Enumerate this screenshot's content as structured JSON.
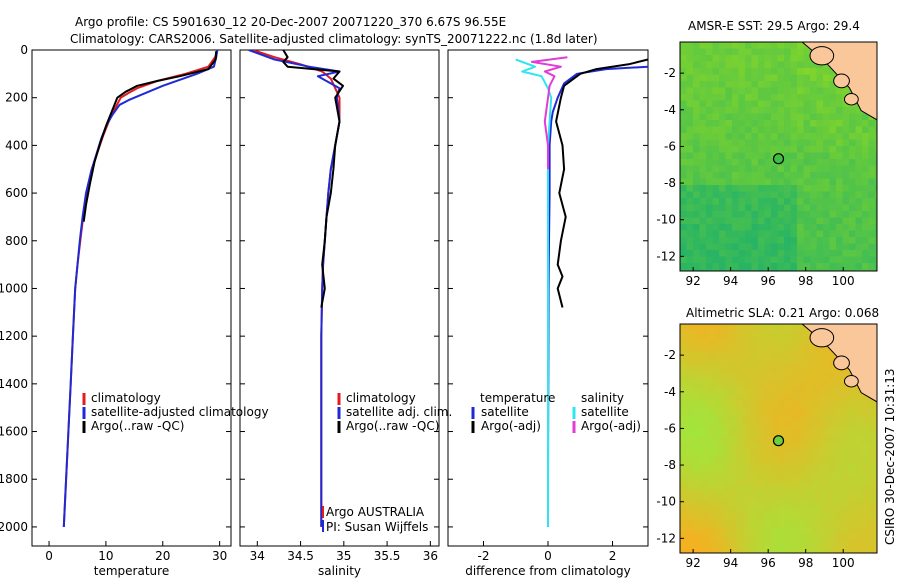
{
  "header": {
    "line1": "Argo profile: CS 5901630_12 20-Dec-2007 20071220_370 6.67S 96.55E",
    "line2": "Climatology: CARS2006. Satellite-adjusted climatology: synTS_20071222.nc (1.8d later)"
  },
  "colors": {
    "climatology": "#e41a1c",
    "satellite": "#1f2ad6",
    "argo": "#000000",
    "salinity_satellite": "#2ee6f0",
    "salinity_argo": "#e23bd8",
    "land": "#f9c79a"
  },
  "credit": "CSIRO 30-Dec-2007 10:31:13",
  "chart_data": [
    {
      "type": "line",
      "xlabel": "temperature",
      "xlim": [
        -3,
        32
      ],
      "xticks": [
        0,
        10,
        20,
        30
      ],
      "ylim": [
        2080,
        0
      ],
      "yticks": [
        0,
        200,
        400,
        600,
        800,
        1000,
        1200,
        1400,
        1600,
        1800,
        2000
      ],
      "legend": [
        "climatology",
        "satellite-adjusted climatology",
        "Argo(..raw -QC)"
      ],
      "series": [
        {
          "name": "climatology",
          "color": "#e41a1c",
          "x": [
            29.6,
            29.2,
            28.0,
            24.0,
            19.0,
            15.5,
            14.0,
            12.6,
            11.5,
            10.5,
            9.5,
            8.5,
            7.5,
            6.6,
            6.0,
            5.5,
            5.0,
            4.6,
            4.2,
            3.8,
            3.4,
            3.0,
            2.6
          ],
          "y": [
            0,
            30,
            70,
            100,
            130,
            160,
            180,
            200,
            250,
            300,
            360,
            430,
            500,
            600,
            700,
            800,
            900,
            1000,
            1200,
            1400,
            1600,
            1800,
            2000
          ]
        },
        {
          "name": "satellite-adjusted climatology",
          "color": "#1f2ad6",
          "x": [
            29.6,
            29.4,
            29.0,
            26.0,
            20.0,
            16.0,
            14.0,
            12.4,
            11.2,
            10.2,
            9.2,
            8.3,
            7.4,
            6.5,
            5.9,
            5.4,
            5.0,
            4.6,
            4.2,
            3.8,
            3.4,
            3.0,
            2.6
          ],
          "y": [
            0,
            30,
            70,
            100,
            150,
            190,
            210,
            230,
            270,
            310,
            370,
            440,
            510,
            600,
            700,
            800,
            900,
            1000,
            1200,
            1400,
            1600,
            1800,
            2000
          ]
        },
        {
          "name": "Argo(..raw -QC)",
          "color": "#000000",
          "x": [
            29.4,
            29.3,
            28.0,
            23.0,
            19.0,
            15.5,
            13.5,
            12.0,
            11.0,
            10.0,
            9.0,
            8.0,
            7.2,
            6.5,
            6.1
          ],
          "y": [
            5,
            40,
            80,
            110,
            130,
            150,
            175,
            200,
            260,
            320,
            390,
            470,
            560,
            650,
            720
          ]
        }
      ]
    },
    {
      "type": "line",
      "xlabel": "salinity",
      "xlim": [
        33.8,
        36.1
      ],
      "xticks": [
        34,
        34.5,
        35,
        35.5,
        36
      ],
      "ylim": [
        2080,
        0
      ],
      "legend": [
        "climatology",
        "satellite adj. clim.",
        "Argo(..raw -QC)"
      ],
      "annotations": [
        "Argo AUSTRALIA",
        "PI: Susan Wijffels"
      ],
      "series": [
        {
          "name": "climatology",
          "color": "#e41a1c",
          "x": [
            33.95,
            34.2,
            34.5,
            34.75,
            34.85,
            34.9,
            34.95,
            34.95,
            34.9,
            34.85,
            34.82,
            34.8,
            34.78,
            34.76,
            34.75,
            34.74,
            34.74,
            34.74,
            34.74,
            34.74
          ],
          "y": [
            0,
            30,
            60,
            90,
            120,
            160,
            200,
            300,
            400,
            500,
            600,
            700,
            800,
            900,
            1000,
            1200,
            1400,
            1600,
            1800,
            2000
          ]
        },
        {
          "name": "satellite adj. clim.",
          "color": "#1f2ad6",
          "x": [
            33.9,
            34.2,
            34.6,
            34.95,
            34.7,
            34.95,
            34.92,
            34.95,
            34.9,
            34.85,
            34.82,
            34.8,
            34.78,
            34.76,
            34.75,
            34.74,
            34.74,
            34.74,
            34.74,
            34.74
          ],
          "y": [
            0,
            40,
            70,
            90,
            110,
            160,
            200,
            300,
            400,
            500,
            600,
            700,
            800,
            900,
            1000,
            1200,
            1400,
            1600,
            1800,
            2000
          ]
        },
        {
          "name": "Argo(..raw -QC)",
          "color": "#000000",
          "x": [
            34.3,
            34.35,
            34.3,
            34.35,
            34.95,
            34.88,
            34.99,
            34.9,
            34.95,
            34.9,
            34.88,
            34.85,
            34.8,
            34.78,
            34.75,
            34.78,
            34.74
          ],
          "y": [
            0,
            30,
            50,
            70,
            90,
            120,
            150,
            200,
            300,
            400,
            500,
            600,
            700,
            800,
            900,
            1000,
            1080
          ]
        }
      ]
    },
    {
      "type": "line",
      "xlabel": "difference from climatology",
      "xlim": [
        -3.1,
        3.1
      ],
      "xticks": [
        -2,
        0,
        2
      ],
      "ylim": [
        2080,
        0
      ],
      "legend": {
        "temperature": [
          "satellite",
          "Argo(-adj)"
        ],
        "salinity": [
          "satellite",
          "Argo(-adj)"
        ]
      },
      "series": [
        {
          "name": "temperature satellite",
          "color": "#1f2ad6",
          "x": [
            3.1,
            1.8,
            0.9,
            0.5,
            0.3,
            0.15,
            0.1,
            0.05,
            0.05,
            0.03,
            0.02,
            0.01,
            0.0,
            0.0
          ],
          "y": [
            70,
            80,
            100,
            140,
            200,
            260,
            300,
            400,
            600,
            800,
            1000,
            1400,
            1800,
            2000
          ]
        },
        {
          "name": "temperature Argo(-adj)",
          "color": "#000000",
          "x": [
            3.1,
            2.5,
            1.5,
            1.0,
            0.8,
            0.5,
            0.4,
            0.25,
            0.45,
            0.5,
            0.35,
            0.55,
            0.4,
            0.3,
            0.45,
            0.3,
            0.45
          ],
          "y": [
            40,
            60,
            80,
            100,
            120,
            150,
            200,
            300,
            400,
            500,
            600,
            700,
            800,
            900,
            950,
            1000,
            1080
          ]
        },
        {
          "name": "salinity satellite",
          "color": "#2ee6f0",
          "x": [
            -1.0,
            -0.4,
            -0.8,
            -0.2,
            0.0,
            0.1,
            0.05,
            0.0,
            0.0,
            0.0,
            0.0,
            0.0,
            0.0,
            0.0
          ],
          "y": [
            40,
            70,
            90,
            110,
            160,
            200,
            300,
            400,
            600,
            800,
            1000,
            1400,
            1800,
            2000
          ]
        },
        {
          "name": "salinity Argo(-adj)",
          "color": "#e23bd8",
          "x": [
            0.6,
            -0.5,
            0.4,
            -0.1,
            0.2,
            0.05,
            0.0,
            -0.1,
            0.0,
            0.0
          ],
          "y": [
            30,
            50,
            70,
            90,
            110,
            150,
            200,
            300,
            400,
            500
          ]
        }
      ]
    },
    {
      "type": "heatmap",
      "title": "AMSR-E SST: 29.5 Argo: 29.4",
      "xticks": [
        92,
        94,
        96,
        98,
        100
      ],
      "yticks": [
        -2,
        -4,
        -6,
        -8,
        -10,
        -12
      ],
      "xlim": [
        91.3,
        101.8
      ],
      "ylim": [
        -12.8,
        -0.3
      ],
      "marker": {
        "lon": 96.55,
        "lat": -6.67
      }
    },
    {
      "type": "heatmap",
      "title": "Altimetric SLA: 0.21 Argo: 0.068",
      "xticks": [
        92,
        94,
        96,
        98,
        100
      ],
      "yticks": [
        -2,
        -4,
        -6,
        -8,
        -10,
        -12
      ],
      "xlim": [
        91.3,
        101.8
      ],
      "ylim": [
        -12.8,
        -0.3
      ],
      "marker": {
        "lon": 96.55,
        "lat": -6.67
      }
    }
  ]
}
